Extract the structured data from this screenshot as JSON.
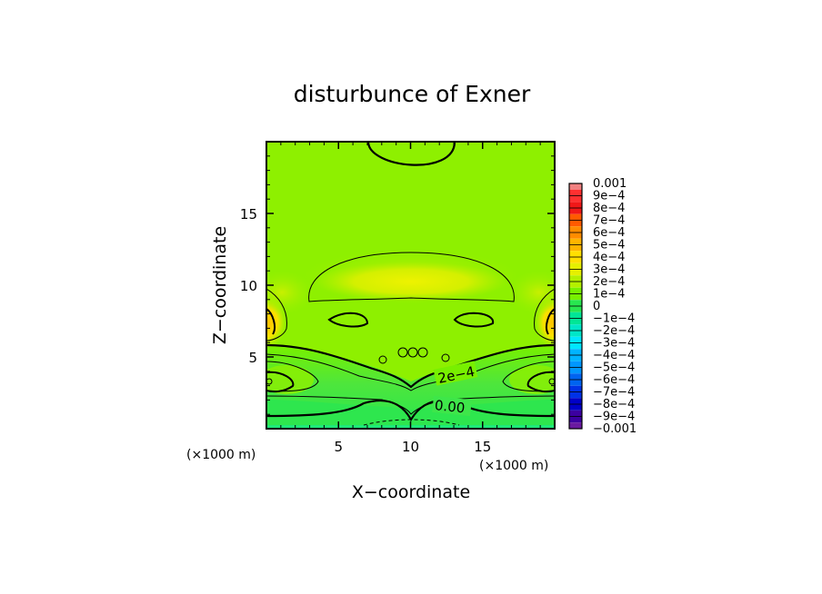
{
  "chart_data": {
    "type": "heatmap",
    "title": "disturbunce of Exner",
    "xlabel": "X−coordinate",
    "ylabel": "Z−coordinate",
    "x_unit": "(×1000 m)",
    "y_unit": "(×1000 m)",
    "xlim": [
      0,
      20
    ],
    "ylim": [
      0,
      20
    ],
    "x_ticks": [
      5,
      10,
      15
    ],
    "y_ticks": [
      5,
      10,
      15
    ],
    "x_tick_labels": [
      "5",
      "10",
      "15"
    ],
    "y_tick_labels": [
      "5",
      "10",
      "15"
    ],
    "colorbar": {
      "min": -0.001,
      "max": 0.001,
      "levels": [
        0.001,
        0.0009,
        0.0008,
        0.0007,
        0.0006,
        0.0005,
        0.0004,
        0.0003,
        0.0002,
        0.0001,
        0,
        -0.0001,
        -0.0002,
        -0.0003,
        -0.0004,
        -0.0005,
        -0.0006,
        -0.0007,
        -0.0008,
        -0.0009,
        -0.001
      ],
      "labels": [
        "0.001",
        "9e−4",
        "8e−4",
        "7e−4",
        "6e−4",
        "5e−4",
        "4e−4",
        "3e−4",
        "2e−4",
        "1e−4",
        "0",
        "−1e−4",
        "−2e−4",
        "−3e−4",
        "−4e−4",
        "−5e−4",
        "−6e−4",
        "−7e−4",
        "−8e−4",
        "−9e−4",
        "−0.001"
      ],
      "colors": [
        "#f08080",
        "#ff3030",
        "#f01818",
        "#ff5a00",
        "#ff8c00",
        "#ffb400",
        "#ffe000",
        "#e6f000",
        "#b4f000",
        "#78f000",
        "#28e650",
        "#00e696",
        "#00e6c8",
        "#00e6ff",
        "#00b4ff",
        "#0096ff",
        "#0064f0",
        "#0032e6",
        "#0000c8",
        "#3c00a0",
        "#6a1aa0"
      ]
    },
    "contour_labels": [
      "2e−4",
      "0.00"
    ],
    "contour_levels_drawn": [
      0,
      0.0001,
      0.0002,
      0.0003
    ]
  }
}
